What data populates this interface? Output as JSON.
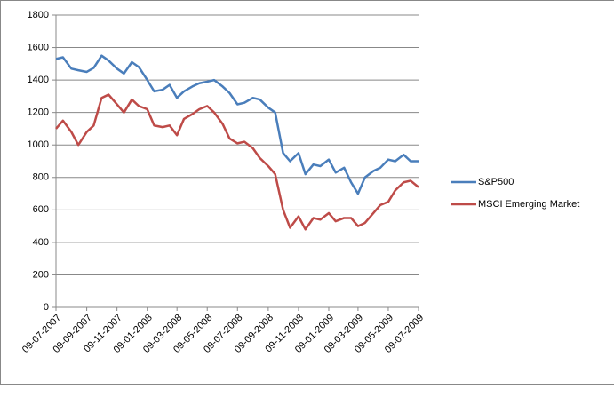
{
  "chart_data": {
    "type": "line",
    "x": [
      "09-07-2007",
      "23-07-2007",
      "09-08-2007",
      "23-08-2007",
      "09-09-2007",
      "23-09-2007",
      "09-10-2007",
      "23-10-2007",
      "09-11-2007",
      "23-11-2007",
      "09-12-2007",
      "23-12-2007",
      "09-01-2008",
      "23-01-2008",
      "09-02-2008",
      "23-02-2008",
      "09-03-2008",
      "23-03-2008",
      "09-04-2008",
      "23-04-2008",
      "09-05-2008",
      "23-05-2008",
      "09-06-2008",
      "23-06-2008",
      "09-07-2008",
      "23-07-2008",
      "09-08-2008",
      "23-08-2008",
      "09-09-2008",
      "23-09-2008",
      "09-10-2008",
      "23-10-2008",
      "09-11-2008",
      "23-11-2008",
      "09-12-2008",
      "23-12-2008",
      "09-01-2009",
      "23-01-2009",
      "09-02-2009",
      "23-02-2009",
      "09-03-2009",
      "23-03-2009",
      "09-04-2009",
      "23-04-2009",
      "09-05-2009",
      "23-05-2009",
      "09-06-2009",
      "23-06-2009",
      "09-07-2009"
    ],
    "series": [
      {
        "name": "S&P500",
        "color": "#4a7ebb",
        "values": [
          1530,
          1540,
          1470,
          1460,
          1450,
          1475,
          1550,
          1520,
          1470,
          1440,
          1510,
          1480,
          1400,
          1330,
          1340,
          1370,
          1290,
          1330,
          1360,
          1380,
          1390,
          1400,
          1360,
          1320,
          1250,
          1260,
          1290,
          1280,
          1230,
          1200,
          950,
          900,
          950,
          820,
          880,
          870,
          910,
          830,
          860,
          770,
          700,
          800,
          840,
          860,
          910,
          900,
          940,
          900,
          900
        ]
      },
      {
        "name": "MSCI Emerging Market",
        "color": "#be4b48",
        "values": [
          1100,
          1150,
          1080,
          1000,
          1080,
          1120,
          1290,
          1310,
          1250,
          1200,
          1280,
          1240,
          1220,
          1120,
          1110,
          1120,
          1060,
          1160,
          1190,
          1220,
          1240,
          1200,
          1130,
          1040,
          1010,
          1020,
          980,
          920,
          870,
          820,
          600,
          490,
          560,
          480,
          550,
          540,
          580,
          530,
          550,
          550,
          500,
          520,
          580,
          630,
          650,
          720,
          770,
          780,
          740
        ]
      }
    ],
    "xticks": [
      "09-07-2007",
      "09-09-2007",
      "09-11-2007",
      "09-01-2008",
      "09-03-2008",
      "09-05-2008",
      "09-07-2008",
      "09-09-2008",
      "09-11-2008",
      "09-01-2009",
      "09-03-2009",
      "09-05-2009",
      "09-07-2009"
    ],
    "ylim": [
      0,
      1800
    ],
    "yticks": [
      0,
      200,
      400,
      600,
      800,
      1000,
      1200,
      1400,
      1600,
      1800
    ],
    "grid": true,
    "legend": "right"
  }
}
